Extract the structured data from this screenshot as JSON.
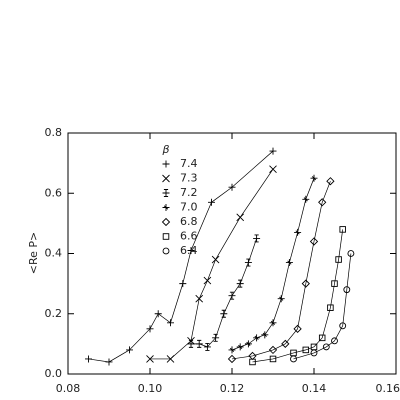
{
  "chart_data": {
    "type": "line",
    "y_label": "<Re P>",
    "legend_title": "β",
    "xlim": [
      0.08,
      0.16
    ],
    "ylim": [
      0.0,
      0.8
    ],
    "xticks": [
      0.08,
      {
        "value": 0.1,
        "label": "0.10"
      },
      0.12,
      0.14,
      {
        "value": 0.16,
        "label": "0.16"
      }
    ],
    "yticks": [
      {
        "value": 0.0,
        "label": "0.0"
      },
      0.2,
      0.4,
      0.6,
      0.8
    ],
    "series": [
      {
        "name": "7.4",
        "marker": "plus",
        "color": "#000000",
        "x": [
          0.085,
          0.09,
          0.095,
          0.1,
          0.102,
          0.105,
          0.108,
          0.11,
          0.115,
          0.12,
          0.13
        ],
        "values": [
          0.05,
          0.04,
          0.08,
          0.15,
          0.2,
          0.17,
          0.3,
          0.41,
          0.57,
          0.62,
          0.74
        ]
      },
      {
        "name": "7.3",
        "marker": "cross",
        "color": "#000000",
        "x": [
          0.1,
          0.105,
          0.11,
          0.112,
          0.114,
          0.116,
          0.122,
          0.13
        ],
        "values": [
          0.05,
          0.05,
          0.11,
          0.25,
          0.31,
          0.38,
          0.52,
          0.68
        ]
      },
      {
        "name": "7.2",
        "marker": "plusbar",
        "color": "#000000",
        "x": [
          0.11,
          0.112,
          0.114,
          0.116,
          0.118,
          0.12,
          0.122,
          0.124,
          0.126
        ],
        "values": [
          0.1,
          0.1,
          0.09,
          0.12,
          0.2,
          0.26,
          0.3,
          0.37,
          0.45
        ]
      },
      {
        "name": "7.0",
        "marker": "star",
        "color": "#000000",
        "x": [
          0.12,
          0.122,
          0.124,
          0.126,
          0.128,
          0.13,
          0.132,
          0.134,
          0.136,
          0.138,
          0.14
        ],
        "values": [
          0.08,
          0.09,
          0.1,
          0.12,
          0.13,
          0.17,
          0.25,
          0.37,
          0.47,
          0.58,
          0.65
        ]
      },
      {
        "name": "6.8",
        "marker": "diamond",
        "color": "#000000",
        "x": [
          0.12,
          0.125,
          0.13,
          0.133,
          0.136,
          0.138,
          0.14,
          0.142,
          0.144
        ],
        "values": [
          0.05,
          0.06,
          0.08,
          0.1,
          0.15,
          0.3,
          0.44,
          0.57,
          0.64
        ]
      },
      {
        "name": "6.6",
        "marker": "square",
        "color": "#000000",
        "x": [
          0.125,
          0.13,
          0.135,
          0.138,
          0.14,
          0.142,
          0.144,
          0.145,
          0.146,
          0.147
        ],
        "values": [
          0.04,
          0.05,
          0.07,
          0.08,
          0.09,
          0.12,
          0.22,
          0.3,
          0.38,
          0.48
        ]
      },
      {
        "name": "6.4",
        "marker": "circle",
        "color": "#000000",
        "x": [
          0.135,
          0.14,
          0.143,
          0.145,
          0.147,
          0.148,
          0.149
        ],
        "values": [
          0.05,
          0.07,
          0.09,
          0.11,
          0.16,
          0.28,
          0.4
        ]
      }
    ]
  }
}
